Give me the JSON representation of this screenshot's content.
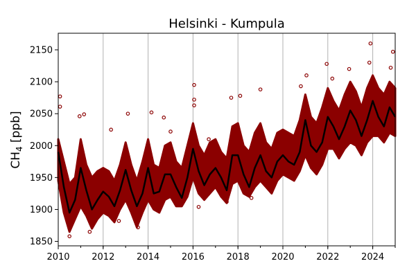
{
  "chart_data": {
    "type": "scatter",
    "title": "Helsinki - Kumpula",
    "xlabel": "",
    "ylabel_main": "CH",
    "ylabel_sub": "4",
    "ylabel_unit": " [ppb]",
    "xlim": [
      2010,
      2025
    ],
    "ylim": [
      1843,
      2176
    ],
    "x_ticks": [
      2010,
      2012,
      2014,
      2016,
      2018,
      2020,
      2022,
      2024
    ],
    "x_tick_labels": [
      "2010",
      "2012",
      "2014",
      "2016",
      "2018",
      "2020",
      "2022",
      "2024"
    ],
    "x_minor_ticks_every": 1,
    "y_ticks": [
      1850,
      1900,
      1950,
      2000,
      2050,
      2100,
      2150
    ],
    "y_tick_labels": [
      "1850",
      "1900",
      "1950",
      "2000",
      "2050",
      "2100",
      "2150"
    ],
    "grid": "vertical lines at major x ticks",
    "colors": {
      "scatter": "#8b0000",
      "line": "#000000",
      "grid": "#b0b0b0"
    },
    "smoothed_line": {
      "x_start": 2010,
      "x_step": 0.25,
      "values": [
        1990,
        1935,
        1895,
        1915,
        1965,
        1930,
        1900,
        1915,
        1928,
        1920,
        1905,
        1930,
        1962,
        1930,
        1905,
        1925,
        1965,
        1925,
        1928,
        1955,
        1955,
        1935,
        1918,
        1950,
        1995,
        1960,
        1938,
        1955,
        1965,
        1950,
        1930,
        1985,
        1985,
        1955,
        1935,
        1965,
        1985,
        1960,
        1950,
        1975,
        1985,
        1975,
        1970,
        1990,
        2040,
        2000,
        1990,
        2005,
        2045,
        2030,
        2010,
        2030,
        2055,
        2040,
        2015,
        2040,
        2070,
        2045,
        2030,
        2060,
        2045
      ]
    },
    "scatter_density_range": {
      "x_start": 2010,
      "x_step": 0.25,
      "low": [
        1945,
        1895,
        1865,
        1885,
        1905,
        1890,
        1870,
        1885,
        1895,
        1890,
        1880,
        1900,
        1915,
        1895,
        1872,
        1895,
        1915,
        1900,
        1895,
        1915,
        1920,
        1905,
        1905,
        1920,
        1950,
        1925,
        1915,
        1925,
        1935,
        1920,
        1910,
        1940,
        1945,
        1925,
        1920,
        1935,
        1945,
        1935,
        1925,
        1945,
        1955,
        1950,
        1945,
        1960,
        1985,
        1965,
        1955,
        1970,
        1995,
        1995,
        1980,
        1995,
        2005,
        2000,
        1985,
        2005,
        2015,
        2015,
        2005,
        2020,
        2015
      ],
      "high": [
        2010,
        1975,
        1940,
        1950,
        2010,
        1970,
        1950,
        1960,
        1965,
        1960,
        1945,
        1970,
        2005,
        1970,
        1945,
        1975,
        2010,
        1970,
        1965,
        2000,
        2005,
        1975,
        1965,
        2000,
        2035,
        2000,
        1985,
        2005,
        2010,
        1990,
        1980,
        2030,
        2035,
        2000,
        1990,
        2020,
        2035,
        2005,
        1995,
        2020,
        2025,
        2020,
        2015,
        2040,
        2080,
        2045,
        2035,
        2060,
        2090,
        2070,
        2055,
        2080,
        2100,
        2085,
        2060,
        2090,
        2110,
        2090,
        2080,
        2100,
        2090
      ]
    },
    "scatter_outliers": [
      [
        2010.08,
        2077
      ],
      [
        2010.08,
        2061
      ],
      [
        2011.15,
        2049
      ],
      [
        2010.95,
        2046
      ],
      [
        2012.35,
        2025
      ],
      [
        2013.1,
        2050
      ],
      [
        2014.15,
        2052
      ],
      [
        2014.7,
        2044
      ],
      [
        2016.05,
        2095
      ],
      [
        2016.05,
        2072
      ],
      [
        2016.05,
        2063
      ],
      [
        2016.7,
        2010
      ],
      [
        2018.1,
        2078
      ],
      [
        2017.7,
        2075
      ],
      [
        2019.0,
        2088
      ],
      [
        2020.8,
        2093
      ],
      [
        2021.05,
        2110
      ],
      [
        2021.95,
        2128
      ],
      [
        2022.2,
        2105
      ],
      [
        2022.95,
        2120
      ],
      [
        2023.9,
        2160
      ],
      [
        2024.9,
        2147
      ],
      [
        2023.85,
        2130
      ],
      [
        2024.8,
        2122
      ],
      [
        2011.4,
        1865
      ],
      [
        2010.5,
        1858
      ],
      [
        2013.55,
        1872
      ],
      [
        2016.25,
        1904
      ],
      [
        2017.5,
        1912
      ],
      [
        2018.6,
        1918
      ],
      [
        2015.0,
        2022
      ],
      [
        2012.7,
        1882
      ]
    ]
  }
}
